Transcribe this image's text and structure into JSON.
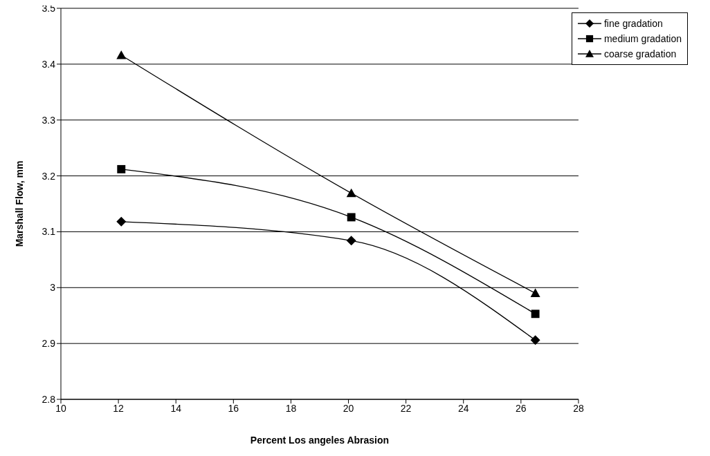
{
  "chart_data": {
    "type": "line",
    "xlabel": "Percent Los angeles Abrasion",
    "ylabel": "Marshall Flow, mm",
    "x": [
      12.1,
      20.1,
      26.5
    ],
    "series": [
      {
        "name": "fine gradation",
        "color": "#000000",
        "marker": "diamond",
        "values": [
          3.118,
          3.084,
          2.906
        ]
      },
      {
        "name": "medium gradation",
        "color": "#000000",
        "marker": "square",
        "values": [
          3.212,
          3.126,
          2.953
        ]
      },
      {
        "name": "coarse gradation",
        "color": "#000000",
        "marker": "triangle",
        "values": [
          3.416,
          3.169,
          2.99
        ]
      }
    ],
    "xlim": [
      10,
      28
    ],
    "xticks": [
      10,
      12,
      14,
      16,
      18,
      20,
      22,
      24,
      26,
      28
    ],
    "ylim": [
      2.8,
      3.5
    ],
    "yticks": [
      2.8,
      2.9,
      3,
      3.1,
      3.2,
      3.3,
      3.4,
      3.5
    ],
    "grid": "y",
    "legend": "top right",
    "line_style": "solid"
  }
}
